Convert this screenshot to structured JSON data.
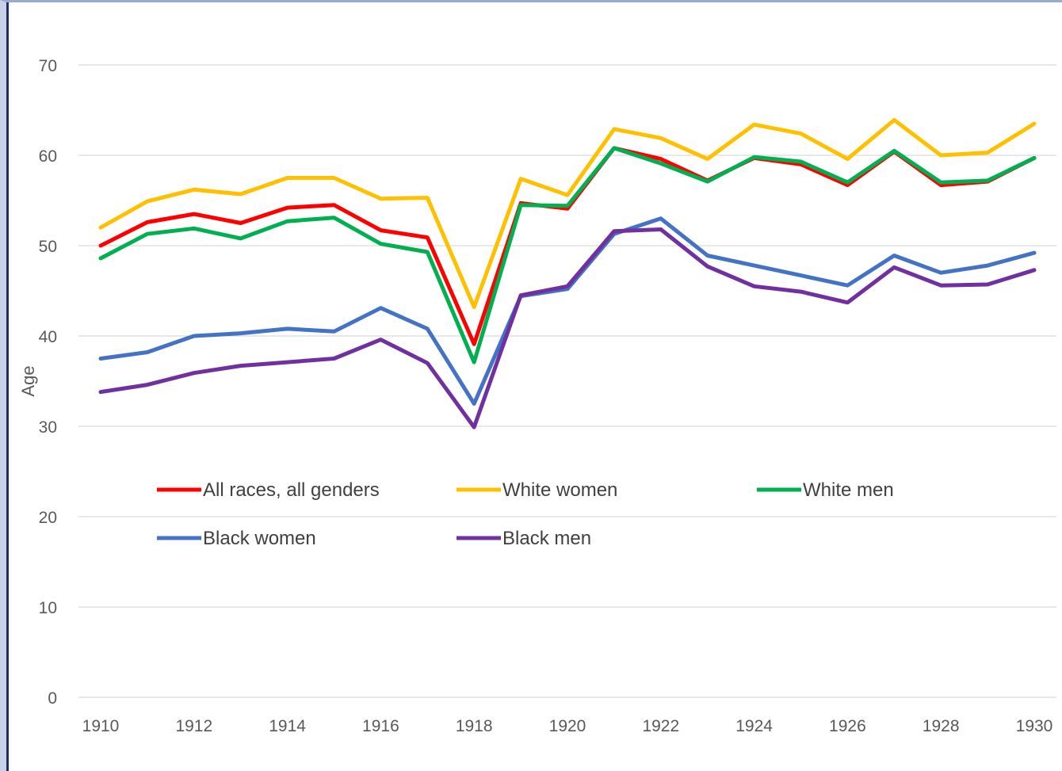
{
  "chart_data": {
    "type": "line",
    "title": "",
    "xlabel": "",
    "ylabel": "Age",
    "ylim": [
      0,
      70
    ],
    "yticks": [
      0,
      10,
      20,
      30,
      40,
      50,
      60,
      70
    ],
    "xlim": [
      1910,
      1930
    ],
    "xticks": [
      1910,
      1912,
      1914,
      1916,
      1918,
      1920,
      1922,
      1924,
      1926,
      1928,
      1930
    ],
    "grid": "horizontal",
    "legend_position": "inside-lower",
    "x": [
      1910,
      1911,
      1912,
      1913,
      1914,
      1915,
      1916,
      1917,
      1918,
      1919,
      1920,
      1921,
      1922,
      1923,
      1924,
      1925,
      1926,
      1927,
      1928,
      1929,
      1930
    ],
    "series": [
      {
        "name": "All races, all genders",
        "color": "#ff0000",
        "values": [
          50.0,
          52.6,
          53.5,
          52.5,
          54.2,
          54.5,
          51.7,
          50.9,
          39.1,
          54.7,
          54.1,
          60.8,
          59.6,
          57.2,
          59.7,
          59.0,
          56.7,
          60.4,
          56.7,
          57.1,
          59.7
        ]
      },
      {
        "name": "White women",
        "color": "#ffc000",
        "values": [
          52.0,
          54.9,
          56.2,
          55.7,
          57.5,
          57.5,
          55.2,
          55.3,
          43.2,
          57.4,
          55.6,
          62.9,
          61.9,
          59.6,
          63.4,
          62.4,
          59.6,
          63.9,
          60.0,
          60.3,
          63.5
        ]
      },
      {
        "name": "White men",
        "color": "#00b050",
        "values": [
          48.6,
          51.3,
          51.9,
          50.8,
          52.7,
          53.1,
          50.2,
          49.3,
          37.1,
          54.5,
          54.4,
          60.8,
          59.1,
          57.1,
          59.8,
          59.3,
          57.0,
          60.5,
          57.0,
          57.2,
          59.7
        ]
      },
      {
        "name": "Black women",
        "color": "#4472c4",
        "values": [
          37.5,
          38.2,
          40.0,
          40.3,
          40.8,
          40.5,
          43.1,
          40.8,
          32.5,
          44.4,
          45.2,
          51.3,
          53.0,
          48.9,
          47.8,
          46.7,
          45.6,
          48.9,
          47.0,
          47.8,
          49.2
        ]
      },
      {
        "name": "Black men",
        "color": "#7030a0",
        "values": [
          33.8,
          34.6,
          35.9,
          36.7,
          37.1,
          37.5,
          39.6,
          37.0,
          29.9,
          44.5,
          45.5,
          51.6,
          51.8,
          47.7,
          45.5,
          44.9,
          43.7,
          47.6,
          45.6,
          45.7,
          47.3
        ]
      }
    ]
  }
}
